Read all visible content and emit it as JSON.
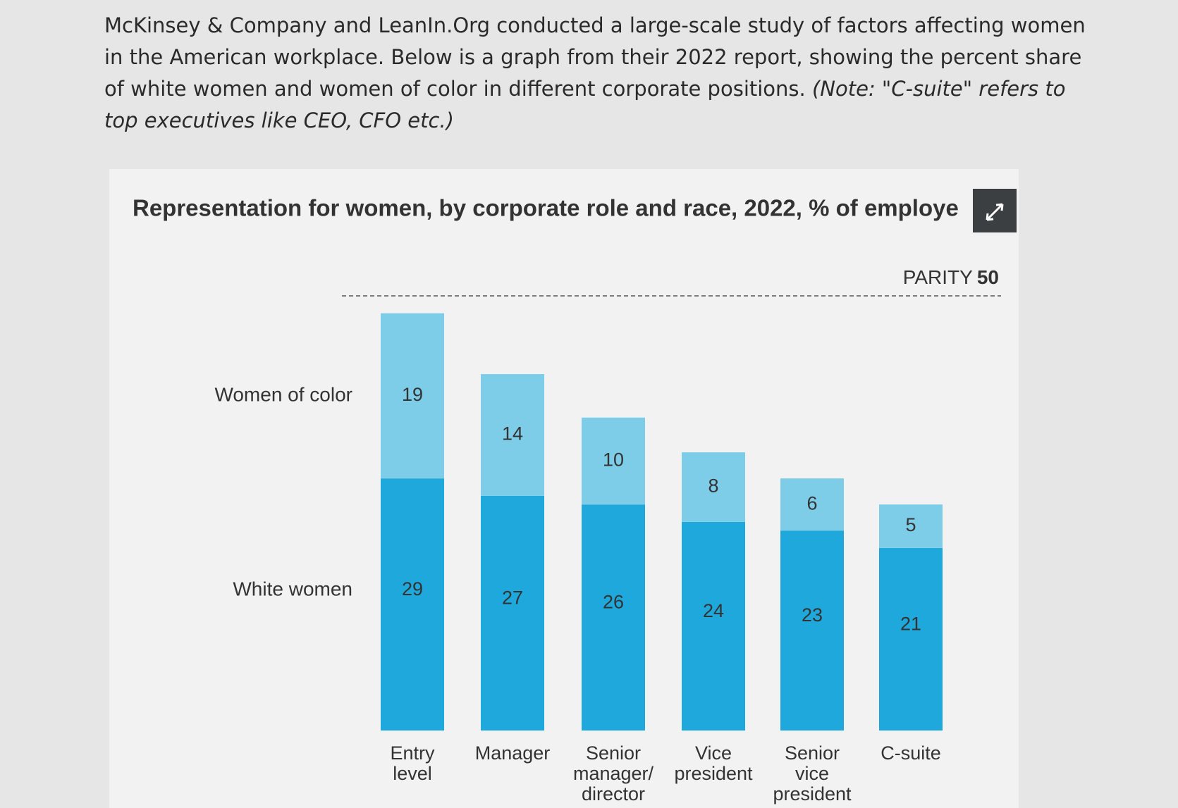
{
  "intro": {
    "text": "McKinsey & Company and LeanIn.Org conducted a large-scale study of factors affecting women in the American workplace. Below is a graph from their 2022 report, showing the percent share of white women and women of color in different corporate positions.",
    "note": "(Note: \"C-suite\" refers to top executives like CEO, CFO etc.)"
  },
  "chart_data": {
    "type": "stacked_bar",
    "title": "Representation for women, by corporate role and race, 2022, % of employe",
    "categories": [
      "Entry level",
      "Manager",
      "Senior manager/ director",
      "Vice president",
      "Senior vice president",
      "C-suite"
    ],
    "series": [
      {
        "name": "White women",
        "color": "#1fa8dc",
        "values": [
          29,
          27,
          26,
          24,
          23,
          21
        ]
      },
      {
        "name": "Women of color",
        "color": "#7dcde9",
        "values": [
          19,
          14,
          10,
          8,
          6,
          5
        ]
      }
    ],
    "ylim": [
      0,
      50
    ],
    "parity": {
      "label": "PARITY",
      "value": 50
    }
  }
}
